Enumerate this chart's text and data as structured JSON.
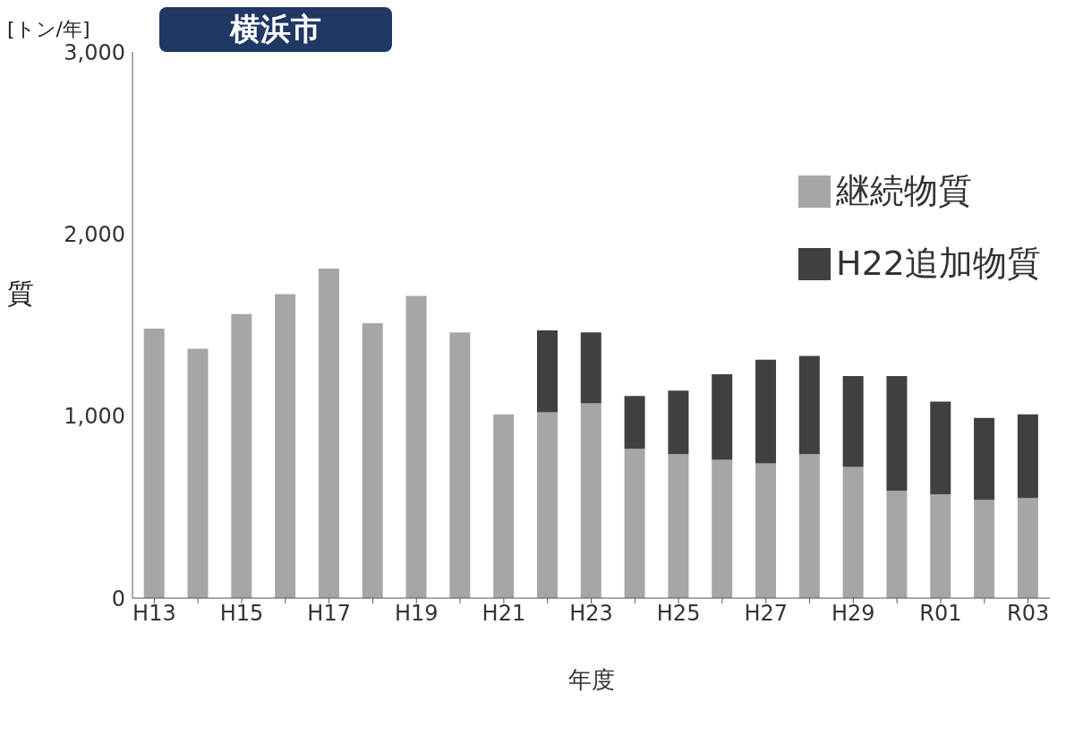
{
  "chart_data": {
    "type": "bar",
    "title": "横浜市",
    "ylabel": "[トン/年]",
    "xlabel": "年度",
    "annotations": [
      "質"
    ],
    "categories": [
      "H13",
      null,
      "H15",
      null,
      "H17",
      null,
      "H19",
      null,
      "H21",
      null,
      "H23",
      null,
      "H25",
      null,
      "H27",
      null,
      "H29",
      null,
      "R01",
      null,
      "R03"
    ],
    "series": [
      {
        "name": "継続物質",
        "color": "#a6a6a6",
        "values": [
          1480,
          1370,
          1560,
          1670,
          1810,
          1510,
          1660,
          1460,
          1010,
          1020,
          1070,
          820,
          790,
          760,
          740,
          790,
          720,
          590,
          570,
          540,
          550
        ]
      },
      {
        "name": "H22追加物質",
        "color": "#404040",
        "values": [
          null,
          null,
          null,
          null,
          null,
          null,
          null,
          null,
          null,
          450,
          390,
          290,
          350,
          470,
          570,
          540,
          500,
          630,
          510,
          450,
          460
        ]
      }
    ],
    "stacked": true,
    "ylim": [
      0,
      3000
    ],
    "yticks": [
      {
        "value": 0,
        "label": "0"
      },
      {
        "value": 1000,
        "label": "1,000"
      },
      {
        "value": 2000,
        "label": "2,000"
      },
      {
        "value": 3000,
        "label": "3,000"
      }
    ],
    "grid": false,
    "legend": "top right"
  }
}
